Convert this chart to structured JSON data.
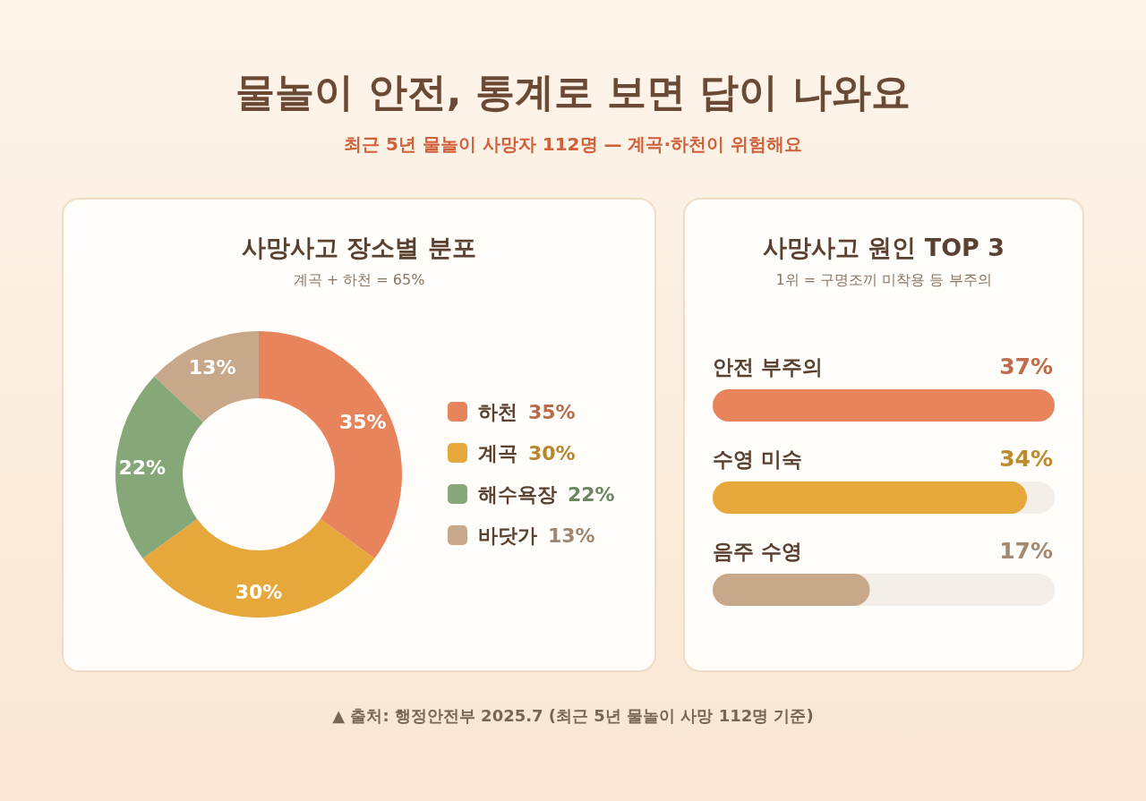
{
  "chart_data": [
    {
      "type": "other",
      "title": "물놀이 안전, 통계로 보면 답이 나와요",
      "subtitle": "최근 5년 물놀이 사망자 112명 — 계곡·하천이 위험해요",
      "annotations": [
        "▲ 출처: 행정안전부 2025.7 (최근 5년 물놀이 사망 112명 기준)"
      ]
    },
    {
      "type": "donut",
      "title": "사망사고 장소별 분포",
      "subtitle": "계곡 + 하천 = 65%",
      "categories": [
        "하천",
        "계곡",
        "해수욕장",
        "바닷가"
      ],
      "values": [
        35,
        30,
        22,
        13
      ],
      "colors": [
        "#e8845c",
        "#e6a83a",
        "#86a878",
        "#c8a88a"
      ],
      "legend": "right",
      "value_labels": [
        "35%",
        "30%",
        "22%",
        "13%"
      ]
    },
    {
      "type": "bar",
      "orientation": "horizontal",
      "title": "사망사고 원인 TOP 3",
      "subtitle": "1위 = 구명조끼 미착용 등 부주의",
      "categories": [
        "안전 부주의",
        "수영 미숙",
        "음주 수영"
      ],
      "values": [
        37,
        34,
        17
      ],
      "colors": [
        "#e8845c",
        "#e6a83a",
        "#c8a88a"
      ],
      "value_labels": [
        "37%",
        "34%",
        "17%"
      ]
    }
  ]
}
